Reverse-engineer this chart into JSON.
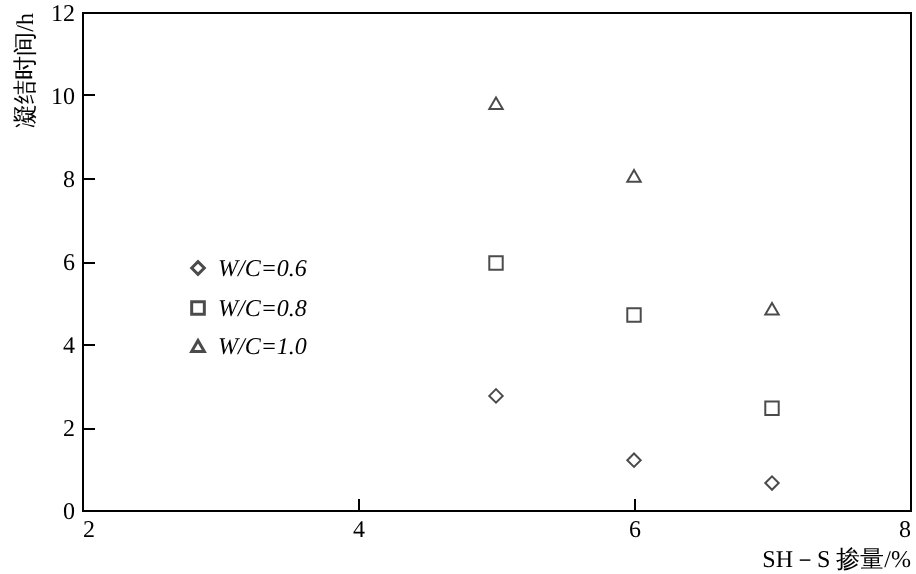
{
  "chart_data": {
    "type": "scatter",
    "xlabel": "SH－S 掺量/%",
    "ylabel": "凝结时间/h",
    "xlim": [
      2,
      8
    ],
    "xticks": [
      2,
      4,
      6,
      8
    ],
    "ylim": [
      0,
      12
    ],
    "yticks": [
      0,
      2,
      4,
      6,
      8,
      10,
      12
    ],
    "grid": false,
    "legend": "left",
    "series": [
      {
        "name": "W/C=0.6",
        "color": "#000000",
        "marker": "diamond",
        "x": [
          5,
          6,
          7
        ],
        "values": [
          2.75,
          1.2,
          0.65
        ]
      },
      {
        "name": "W/C=0.8",
        "color": "#000000",
        "marker": "square",
        "x": [
          5,
          6,
          7
        ],
        "values": [
          5.95,
          4.7,
          2.45
        ]
      },
      {
        "name": "W/C=1.0",
        "color": "#000000",
        "marker": "triangle",
        "x": [
          5,
          6,
          7
        ],
        "values": [
          9.8,
          8.05,
          4.85
        ]
      }
    ]
  }
}
